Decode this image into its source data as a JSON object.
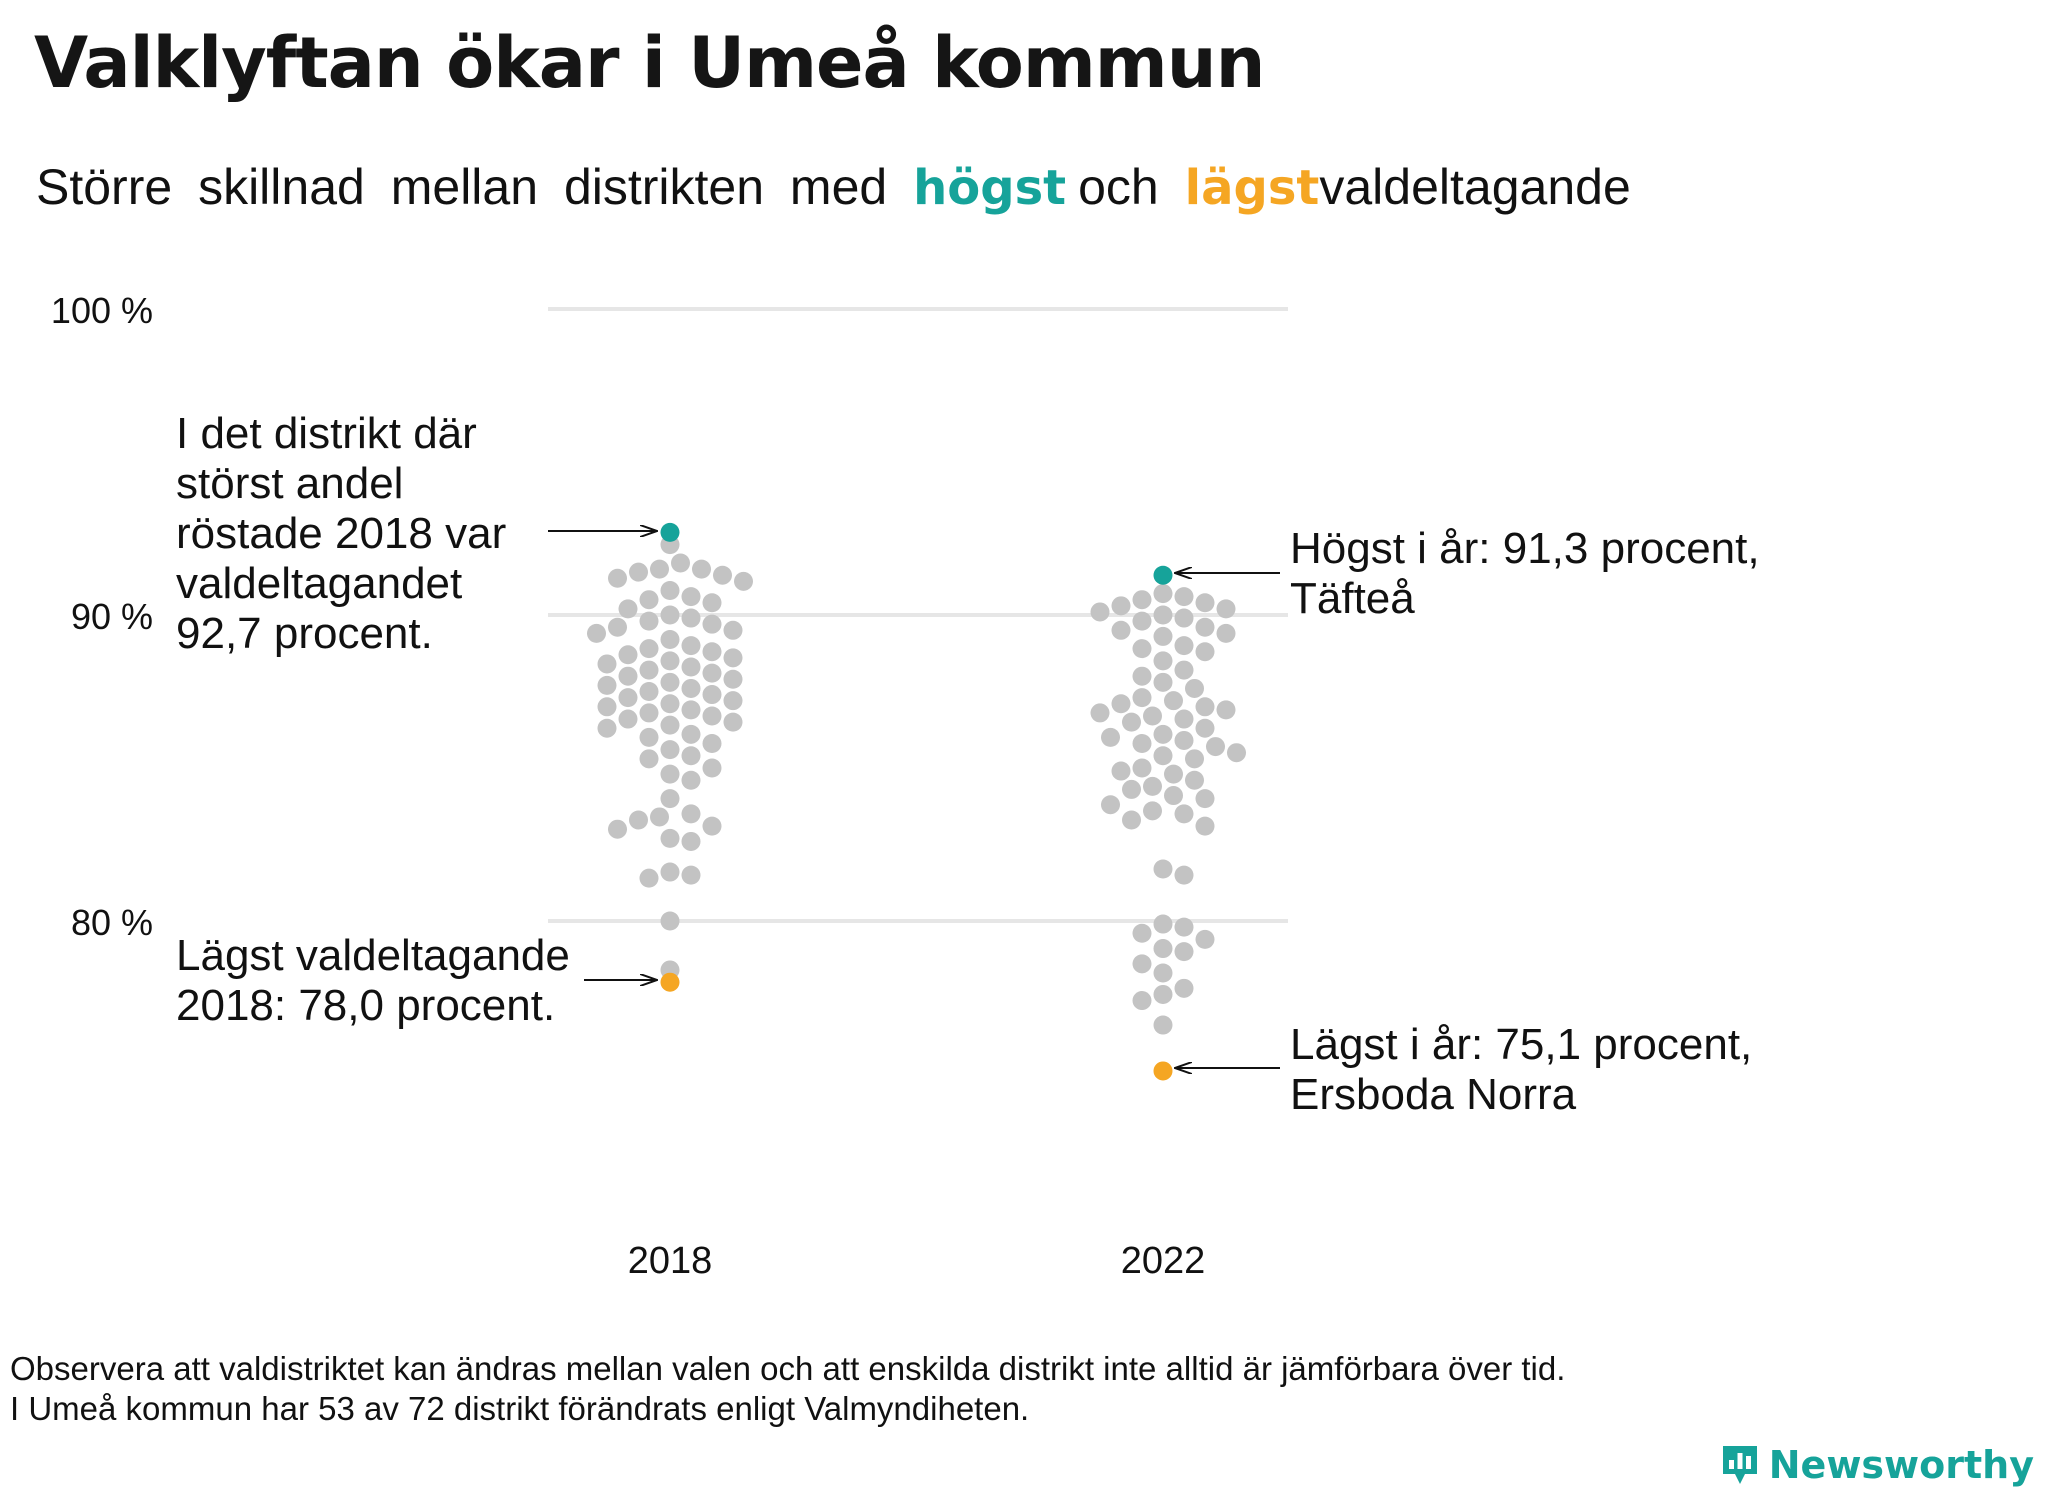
{
  "title": "Valklyftan ökar i Umeå kommun",
  "subtitle": {
    "words": [
      "Större",
      "skillnad",
      "mellan",
      "distrikten",
      "med"
    ],
    "highest": "högst",
    "and": "och",
    "lowest": "lägst",
    "tail": "valdeltagande"
  },
  "colors": {
    "highest": "#16a39a",
    "lowest": "#f5a623",
    "other": "#c3c3c3",
    "grid": "#e6e6e6"
  },
  "annotations": {
    "top_2018": [
      "I det distrikt där",
      "störst andel",
      "röstade 2018 var",
      "valdeltagandet",
      "92,7 procent."
    ],
    "low_2018": [
      "Lägst valdeltagande",
      "2018: 78,0 procent."
    ],
    "top_2022": [
      "Högst i år: 91,3 procent,",
      "Täfteå"
    ],
    "low_2022": [
      "Lägst i år: 75,1 procent,",
      "Ersboda Norra"
    ]
  },
  "footnote": [
    "Observera att valdistriktet kan ändras mellan valen och att enskilda distrikt inte alltid är jämförbara över tid.",
    "I Umeå kommun har 53 av 72 distrikt förändrats enligt Valmyndiheten."
  ],
  "brand": {
    "name": "Newsworthy",
    "icon": "newsworthy-logo-icon"
  },
  "chart_data": {
    "type": "scatter",
    "subtype": "beeswarm",
    "categories": [
      "2018",
      "2022"
    ],
    "y_ticks": [
      {
        "value": 80,
        "label": "80 %"
      },
      {
        "value": 90,
        "label": "90 %"
      },
      {
        "value": 100,
        "label": "100 %"
      }
    ],
    "ylim": [
      73,
      100
    ],
    "grid": true,
    "highest": [
      {
        "category": "2018",
        "value": 92.7
      },
      {
        "category": "2022",
        "value": 91.3
      }
    ],
    "lowest": [
      {
        "category": "2018",
        "value": 78.0
      },
      {
        "category": "2022",
        "value": 75.1
      }
    ],
    "series": [
      {
        "category": "2018",
        "values": [
          92.3,
          91.7,
          91.5,
          91.5,
          91.4,
          91.3,
          91.2,
          91.1,
          90.8,
          90.6,
          90.5,
          90.4,
          90.2,
          90.0,
          89.9,
          89.8,
          89.7,
          89.6,
          89.5,
          89.4,
          89.2,
          89.0,
          88.9,
          88.8,
          88.7,
          88.6,
          88.5,
          88.4,
          88.3,
          88.2,
          88.1,
          88.0,
          87.9,
          87.8,
          87.7,
          87.6,
          87.5,
          87.4,
          87.3,
          87.2,
          87.1,
          87.0,
          86.9,
          86.8,
          86.7,
          86.6,
          86.5,
          86.4,
          86.3,
          86.1,
          86.0,
          85.8,
          85.6,
          85.4,
          85.3,
          85.0,
          84.8,
          84.6,
          84.0,
          83.5,
          83.4,
          83.3,
          83.1,
          83.0,
          82.7,
          82.6,
          81.6,
          81.5,
          81.4,
          80.0,
          78.4
        ]
      },
      {
        "category": "2022",
        "values": [
          90.7,
          90.6,
          90.5,
          90.4,
          90.3,
          90.2,
          90.1,
          90.0,
          89.9,
          89.8,
          89.6,
          89.5,
          89.4,
          89.3,
          89.0,
          88.9,
          88.8,
          88.5,
          88.2,
          88.0,
          87.8,
          87.6,
          87.3,
          87.2,
          87.1,
          87.0,
          86.9,
          86.8,
          86.7,
          86.6,
          86.5,
          86.3,
          86.1,
          86.0,
          85.9,
          85.8,
          85.7,
          85.5,
          85.4,
          85.3,
          85.0,
          84.9,
          84.8,
          84.6,
          84.4,
          84.3,
          84.1,
          84.0,
          83.8,
          83.6,
          83.5,
          83.3,
          83.1,
          81.7,
          81.5,
          79.9,
          79.8,
          79.6,
          79.4,
          79.1,
          79.0,
          78.6,
          78.3,
          77.8,
          77.6,
          77.4,
          76.6
        ]
      }
    ]
  }
}
